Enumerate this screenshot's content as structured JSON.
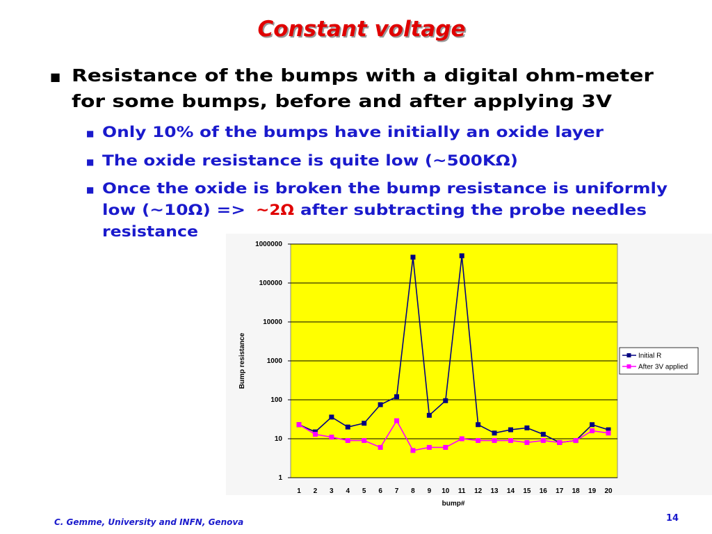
{
  "title": "Constant voltage",
  "bullets": [
    {
      "text": [
        "Resistance of the bumps with a digital ohm-meter",
        "for some bumps, before and after applying 3V"
      ],
      "sub": [
        {
          "lines": [
            [
              "Only 10% of the bumps have initially an oxide layer"
            ]
          ]
        },
        {
          "lines": [
            [
              "The oxide resistance is quite low (~500KΩ)"
            ]
          ]
        },
        {
          "lines": [
            [
              "Once the oxide is broken the bump resistance is uniformly"
            ],
            [
              "low (~10Ω)  =>",
              "~2Ω",
              "after subtracting the probe needles"
            ],
            [
              "resistance"
            ]
          ]
        }
      ]
    }
  ],
  "footer": "C. Gemme, University and INFN, Genova",
  "page_number": "14",
  "chart_data": {
    "type": "line",
    "y_label": "Bump resistance",
    "x_label": "bump#",
    "categories": [
      "1",
      "2",
      "3",
      "4",
      "5",
      "6",
      "7",
      "8",
      "9",
      "10",
      "11",
      "12",
      "13",
      "14",
      "15",
      "16",
      "17",
      "18",
      "19",
      "20"
    ],
    "series": [
      {
        "name": "Initial R",
        "color": "#000080",
        "values": [
          23,
          15,
          36,
          20,
          25,
          75,
          120,
          460000,
          40,
          95,
          500000,
          23,
          14,
          17,
          19,
          13,
          8,
          9,
          23,
          17
        ]
      },
      {
        "name": "After 3V applied",
        "color": "#ff00ff",
        "values": [
          23,
          13,
          11,
          9,
          9,
          6,
          29,
          5,
          6,
          6,
          10,
          9,
          9,
          9,
          8,
          9,
          8,
          9,
          16,
          14
        ]
      }
    ],
    "ylim": [
      1,
      1000000
    ],
    "yticks": [
      1,
      10,
      100,
      1000,
      10000,
      100000,
      1000000
    ],
    "log_y": true,
    "grid": true,
    "background": "#ffff00",
    "legend": "right"
  }
}
